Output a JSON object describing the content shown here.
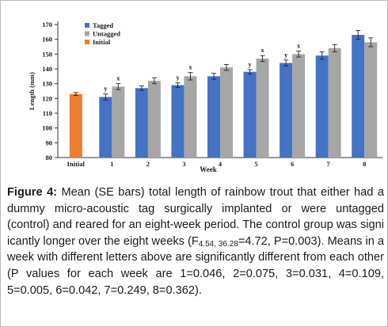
{
  "chart_data": {
    "type": "bar",
    "categories": [
      "Initial",
      "1",
      "2",
      "3",
      "4",
      "5",
      "6",
      "7",
      "8"
    ],
    "series": [
      {
        "name": "Tagged",
        "color": "#4472c4",
        "values": [
          null,
          121,
          127,
          129,
          135,
          138,
          144,
          149,
          163
        ],
        "errors": [
          null,
          2,
          1.5,
          1.5,
          2,
          1.5,
          2,
          2.5,
          3
        ],
        "letters": [
          "",
          "y",
          "",
          "y",
          "",
          "y",
          "y",
          "",
          ""
        ]
      },
      {
        "name": "Untagged",
        "color": "#a6a6a6",
        "values": [
          null,
          128,
          132,
          135,
          141,
          147,
          150,
          154,
          158
        ],
        "errors": [
          null,
          2,
          2,
          2.5,
          2,
          2,
          2,
          2.5,
          3
        ],
        "letters": [
          "",
          "x",
          "",
          "x",
          "",
          "x",
          "x",
          "",
          ""
        ]
      },
      {
        "name": "Initial",
        "color": "#ed7d31",
        "values": [
          123,
          null,
          null,
          null,
          null,
          null,
          null,
          null,
          null
        ],
        "errors": [
          1,
          null,
          null,
          null,
          null,
          null,
          null,
          null,
          null
        ],
        "letters": [
          "",
          "",
          "",
          "",
          "",
          "",
          "",
          "",
          ""
        ]
      }
    ],
    "title": "",
    "xlabel": "Week",
    "ylabel": "Length (mm)",
    "ylim": [
      80,
      170
    ],
    "yticks": [
      80,
      90,
      100,
      110,
      120,
      130,
      140,
      150,
      160,
      170
    ],
    "grid": false,
    "legend": "top-left"
  },
  "caption": {
    "label": "Figure 4:",
    "text_1": " Mean (SE bars) total length of rainbow trout that either had a dummy micro-acoustic tag surgically implanted or were untagged (control) and reared for an eight-week period. The control group was signi icantly longer over the eight weeks (F",
    "sub": "4.54,  36.28",
    "text_2": "=4.72,  P=0.003).  Means  in  a  week  with  different letters above are significantly different from each other (P values for each week are 1=0.046, 2=0.075, 3=0.031, 4=0.109, 5=0.005, 6=0.042, 7=0.249, 8=0.362)."
  }
}
